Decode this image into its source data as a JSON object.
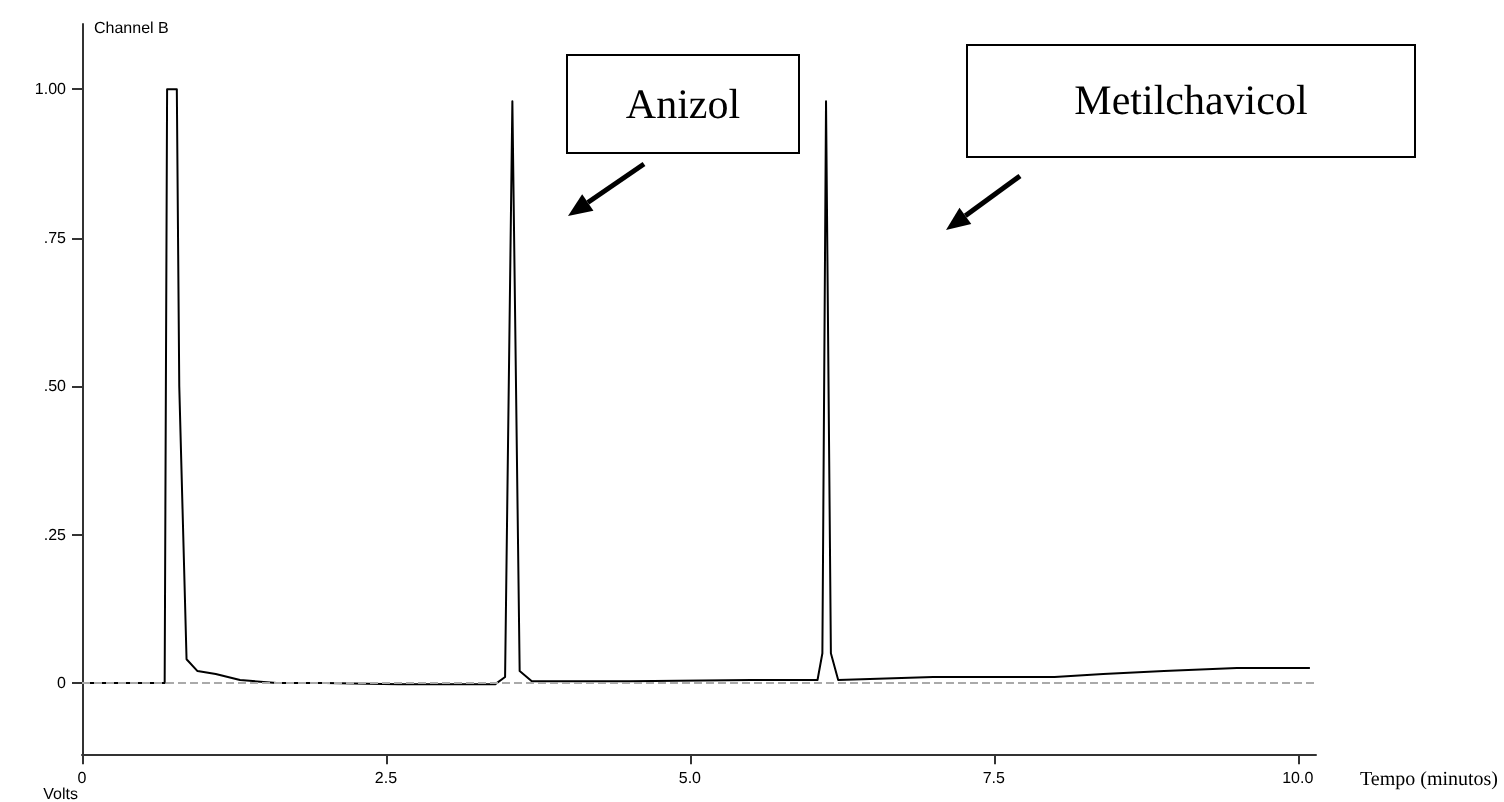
{
  "chart_data": {
    "type": "line",
    "title": "Channel B",
    "xlabel": "Tempo (minutos)",
    "ylabel": "Volts",
    "annotations": [
      "Anizol",
      "Metilchavicol"
    ],
    "x": [
      0,
      0.68,
      0.7,
      0.78,
      0.8,
      0.86,
      0.95,
      1.1,
      1.3,
      1.6,
      2.0,
      2.6,
      3.4,
      3.48,
      3.54,
      3.6,
      3.7,
      4.5,
      5.5,
      6.05,
      6.09,
      6.12,
      6.16,
      6.22,
      7.0,
      7.5,
      8.0,
      8.4,
      8.9,
      9.5,
      10.1
    ],
    "series": [
      {
        "color": "#000000",
        "values": [
          0,
          0,
          1.0,
          1.0,
          0.5,
          0.04,
          0.02,
          0.015,
          0.005,
          0,
          0,
          -0.002,
          -0.002,
          0.01,
          0.98,
          0.02,
          0.003,
          0.003,
          0.005,
          0.005,
          0.05,
          0.98,
          0.05,
          0.005,
          0.01,
          0.01,
          0.01,
          0.015,
          0.02,
          0.025,
          0.025
        ]
      }
    ],
    "xlim": [
      0,
      10.15
    ],
    "ylim": [
      -0.12,
      1.11
    ],
    "xticks": [
      0,
      2.5,
      {
        "value": 5,
        "label": "5.0"
      },
      7.5,
      {
        "value": 10,
        "label": "10.0"
      }
    ],
    "yticks": [
      0,
      {
        "value": 0.25,
        "label": ".25"
      },
      {
        "value": 0.5,
        "label": ".50"
      },
      {
        "value": 0.75,
        "label": ".75"
      },
      {
        "value": 1,
        "label": "1.00"
      }
    ],
    "ref_lines": [
      {
        "axis": "y",
        "value": 0,
        "color": "#aaaaaa",
        "line_style": "dashed"
      }
    ],
    "grid": false,
    "marker": "none",
    "line_style": "solid"
  }
}
